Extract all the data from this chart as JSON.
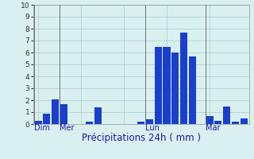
{
  "title": "",
  "xlabel": "Précipitations 24h ( mm )",
  "ylabel": "",
  "background_color": "#daf0f0",
  "bar_color": "#1a3fcc",
  "grid_color": "#aacaca",
  "ylim": [
    0,
    10
  ],
  "yticks": [
    0,
    1,
    2,
    3,
    4,
    5,
    6,
    7,
    8,
    9,
    10
  ],
  "day_labels": [
    "Dim",
    "Mer",
    "Lun",
    "Mar"
  ],
  "day_positions": [
    0,
    3,
    13,
    20
  ],
  "bar_values": [
    0.3,
    0.9,
    2.1,
    1.7,
    0.0,
    0.0,
    0.2,
    1.4,
    0.0,
    0.0,
    0.0,
    0.0,
    0.2,
    0.4,
    6.5,
    6.5,
    6.0,
    7.7,
    5.7,
    0.0,
    0.7,
    0.3,
    1.5,
    0.2,
    0.5
  ],
  "num_bars": 25,
  "xlabel_fontsize": 8.5,
  "tick_fontsize": 6.5,
  "day_label_fontsize": 7,
  "vline_color": "#707070",
  "xlabel_color": "#1a1aaa",
  "day_label_color": "#1a1aaa",
  "tick_color": "#333333"
}
